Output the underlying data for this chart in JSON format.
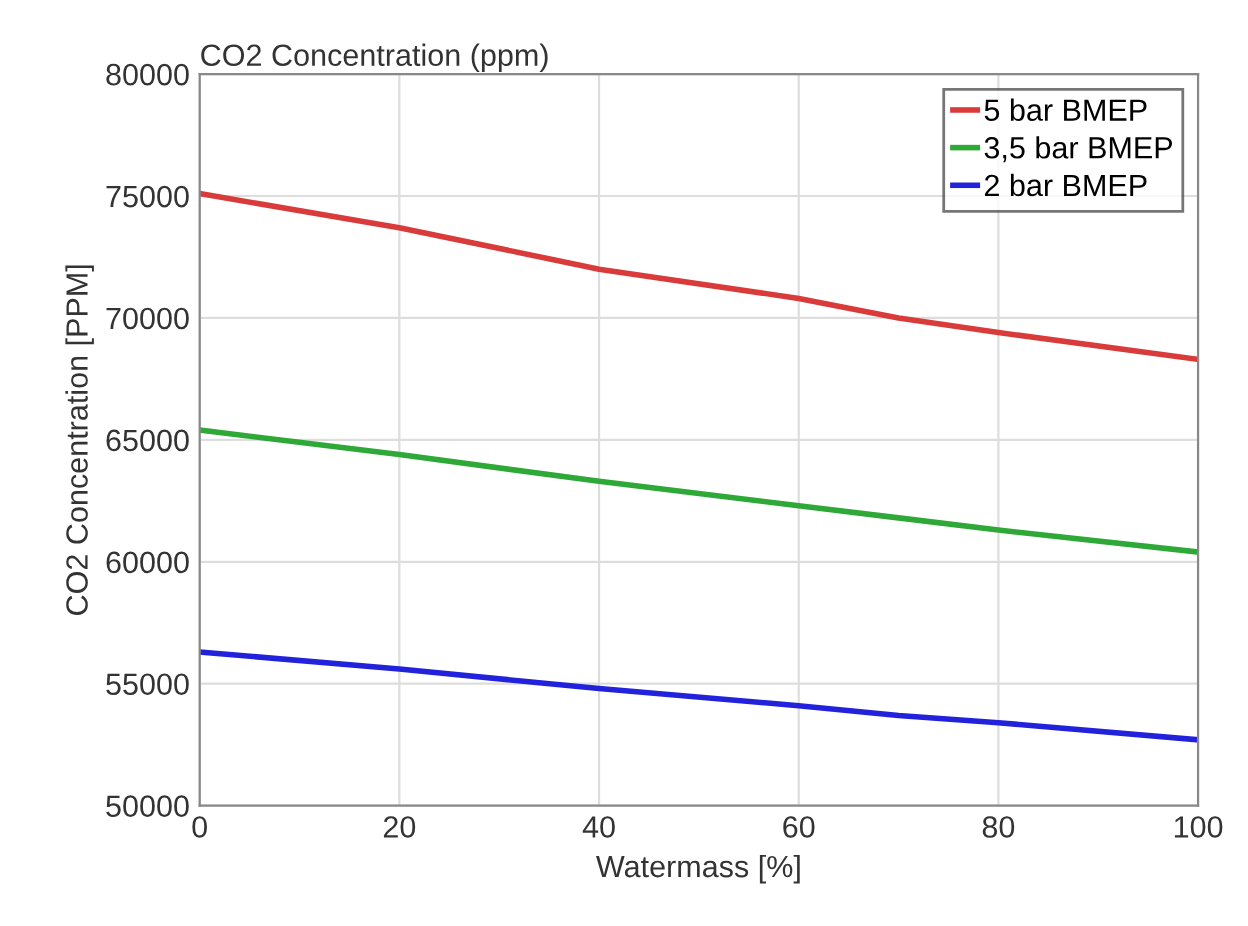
{
  "chart_data": {
    "type": "line",
    "title": "CO2 Concentration (ppm)",
    "xlabel": "Watermass [%]",
    "ylabel": "CO2 Concentration [PPM]",
    "x": [
      0,
      20,
      40,
      60,
      70,
      80,
      100
    ],
    "series": [
      {
        "name": "5 bar BMEP",
        "color": "#d93a3a",
        "values": [
          75100,
          73700,
          72000,
          70800,
          70000,
          69400,
          68300
        ]
      },
      {
        "name": "3,5 bar BMEP",
        "color": "#2ea836",
        "values": [
          65400,
          64400,
          63300,
          62300,
          61800,
          61300,
          60400
        ]
      },
      {
        "name": "2 bar BMEP",
        "color": "#2222dd",
        "values": [
          56300,
          55600,
          54800,
          54100,
          53700,
          53400,
          52700
        ]
      }
    ],
    "xlim": [
      0,
      100
    ],
    "xticks": [
      0,
      20,
      40,
      60,
      80,
      100
    ],
    "ylim": [
      50000,
      80000
    ],
    "yticks": [
      50000,
      55000,
      60000,
      65000,
      70000,
      75000,
      80000
    ],
    "grid": true,
    "legend": "top right",
    "marker": "none",
    "line_style": "solid"
  }
}
